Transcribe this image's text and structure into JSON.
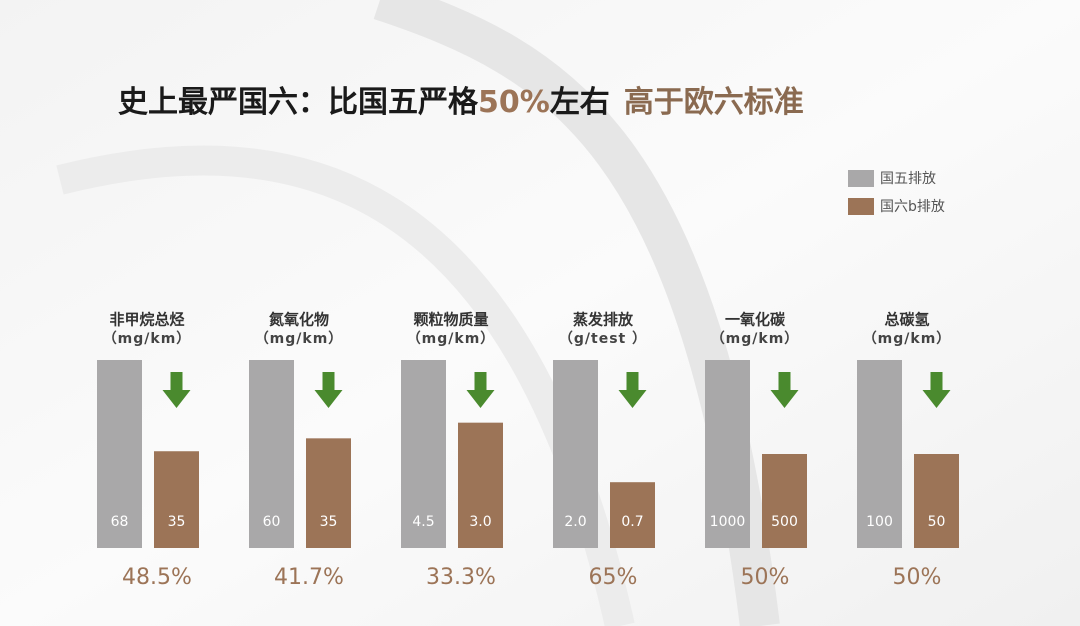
{
  "title_parts": [
    "史上最严国六：比国五严格",
    "50%",
    "左右",
    "高于欧六标准"
  ],
  "legend": [
    {
      "name": "国五排放",
      "color": "#a9a8a9"
    },
    {
      "name": "国六b排放",
      "color": "#9c7457"
    }
  ],
  "chart_data": [
    {
      "type": "bar",
      "title": "非甲烷总烃",
      "subtitle": "（mg/km）",
      "values": [
        68,
        35
      ],
      "reduction": "48.5%"
    },
    {
      "type": "bar",
      "title": "氮氧化物",
      "subtitle": "（mg/km）",
      "values": [
        60,
        35
      ],
      "reduction": "41.7%"
    },
    {
      "type": "bar",
      "title": "颗粒物质量",
      "subtitle": "（mg/km）",
      "values": [
        4.5,
        3
      ],
      "value_labels": [
        "4.5",
        "3.0"
      ],
      "reduction": "33.3%"
    },
    {
      "type": "bar",
      "title": "蒸发排放",
      "subtitle": "（g/test ）",
      "values": [
        2,
        0.7
      ],
      "value_labels": [
        "2.0",
        "0.7"
      ],
      "reduction": "65%"
    },
    {
      "type": "bar",
      "title": "一氧化碳",
      "subtitle": "（mg/km）",
      "values": [
        1000,
        500
      ],
      "reduction": "50%"
    },
    {
      "type": "bar",
      "title": "总碳氢",
      "subtitle": "（mg/km）",
      "values": [
        100,
        50
      ],
      "reduction": "50%"
    }
  ]
}
